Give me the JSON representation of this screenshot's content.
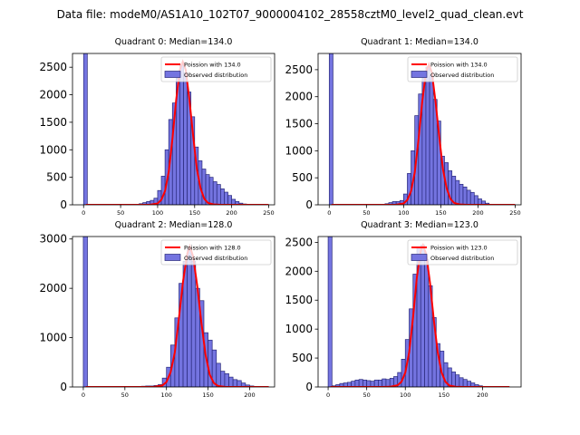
{
  "figure": {
    "suptitle": "Data file: modeM0/AS1A10_102T07_9000004102_28558cztM0_level2_quad_clean.evt"
  },
  "colors": {
    "bar_fill": "#7474e0",
    "bar_edge": "#28287a",
    "line": "#ff0000",
    "axis": "#000000"
  },
  "chart_data": [
    {
      "type": "bar",
      "title": "Quadrant 0: Median=134.0",
      "median": 134.0,
      "xlim": [
        -15,
        258
      ],
      "ylim": [
        0,
        2750
      ],
      "xticks": [
        0,
        50,
        100,
        150,
        200,
        250
      ],
      "yticks": [
        0,
        500,
        1000,
        1500,
        2000,
        2500
      ],
      "bin_width": 5,
      "bars": [
        [
          0,
          2750
        ],
        [
          65,
          10
        ],
        [
          70,
          10
        ],
        [
          75,
          20
        ],
        [
          80,
          40
        ],
        [
          85,
          60
        ],
        [
          90,
          80
        ],
        [
          95,
          120
        ],
        [
          100,
          260
        ],
        [
          105,
          520
        ],
        [
          110,
          1000
        ],
        [
          115,
          1550
        ],
        [
          120,
          1850
        ],
        [
          125,
          2300
        ],
        [
          130,
          2550
        ],
        [
          135,
          2400
        ],
        [
          140,
          2050
        ],
        [
          145,
          1600
        ],
        [
          150,
          1050
        ],
        [
          155,
          800
        ],
        [
          160,
          650
        ],
        [
          165,
          550
        ],
        [
          170,
          500
        ],
        [
          175,
          420
        ],
        [
          180,
          370
        ],
        [
          185,
          290
        ],
        [
          190,
          230
        ],
        [
          195,
          170
        ],
        [
          200,
          100
        ],
        [
          205,
          60
        ],
        [
          210,
          30
        ],
        [
          215,
          15
        ],
        [
          220,
          5
        ]
      ],
      "poisson_curve": {
        "lambda": 134.0,
        "peak": 2600,
        "points": [
          [
            3,
            0
          ],
          [
            80,
            0
          ],
          [
            90,
            2
          ],
          [
            100,
            25
          ],
          [
            105,
            90
          ],
          [
            110,
            250
          ],
          [
            115,
            600
          ],
          [
            120,
            1200
          ],
          [
            125,
            1900
          ],
          [
            130,
            2450
          ],
          [
            134,
            2600
          ],
          [
            138,
            2450
          ],
          [
            143,
            1900
          ],
          [
            148,
            1250
          ],
          [
            153,
            650
          ],
          [
            158,
            300
          ],
          [
            163,
            110
          ],
          [
            168,
            35
          ],
          [
            175,
            8
          ],
          [
            185,
            0
          ],
          [
            250,
            0
          ]
        ]
      },
      "legend": {
        "location": "upper right",
        "entries": [
          "Poission with 134.0",
          "Observed distribution"
        ]
      }
    },
    {
      "type": "bar",
      "title": "Quadrant 1: Median=134.0",
      "median": 134.0,
      "xlim": [
        -15,
        258
      ],
      "ylim": [
        0,
        2800
      ],
      "xticks": [
        0,
        50,
        100,
        150,
        200,
        250
      ],
      "yticks": [
        0,
        500,
        1000,
        1500,
        2000,
        2500
      ],
      "bin_width": 5,
      "bars": [
        [
          0,
          2800
        ],
        [
          65,
          10
        ],
        [
          70,
          10
        ],
        [
          75,
          20
        ],
        [
          80,
          40
        ],
        [
          85,
          60
        ],
        [
          90,
          60
        ],
        [
          95,
          80
        ],
        [
          100,
          200
        ],
        [
          105,
          580
        ],
        [
          110,
          1000
        ],
        [
          115,
          1650
        ],
        [
          120,
          2050
        ],
        [
          125,
          2350
        ],
        [
          130,
          2550
        ],
        [
          135,
          2400
        ],
        [
          140,
          1950
        ],
        [
          145,
          1550
        ],
        [
          150,
          900
        ],
        [
          155,
          780
        ],
        [
          160,
          630
        ],
        [
          165,
          530
        ],
        [
          170,
          450
        ],
        [
          175,
          380
        ],
        [
          180,
          330
        ],
        [
          185,
          270
        ],
        [
          190,
          230
        ],
        [
          195,
          170
        ],
        [
          200,
          110
        ],
        [
          205,
          70
        ],
        [
          210,
          30
        ],
        [
          215,
          10
        ],
        [
          220,
          5
        ]
      ],
      "poisson_curve": {
        "lambda": 134.0,
        "peak": 2600,
        "points": [
          [
            3,
            0
          ],
          [
            80,
            0
          ],
          [
            90,
            2
          ],
          [
            100,
            25
          ],
          [
            105,
            90
          ],
          [
            110,
            250
          ],
          [
            115,
            600
          ],
          [
            120,
            1200
          ],
          [
            125,
            1900
          ],
          [
            130,
            2450
          ],
          [
            134,
            2600
          ],
          [
            138,
            2450
          ],
          [
            143,
            1900
          ],
          [
            148,
            1250
          ],
          [
            153,
            650
          ],
          [
            158,
            300
          ],
          [
            163,
            110
          ],
          [
            168,
            35
          ],
          [
            175,
            8
          ],
          [
            185,
            0
          ],
          [
            250,
            0
          ]
        ]
      },
      "legend": {
        "location": "upper right",
        "entries": [
          "Poission with 134.0",
          "Observed distribution"
        ]
      }
    },
    {
      "type": "bar",
      "title": "Quadrant 2: Median=128.0",
      "median": 128.0,
      "xlim": [
        -13,
        230
      ],
      "ylim": [
        0,
        3050
      ],
      "xticks": [
        0,
        50,
        100,
        150,
        200
      ],
      "yticks": [
        0,
        1000,
        2000,
        3000
      ],
      "bin_width": 5,
      "bars": [
        [
          0,
          3050
        ],
        [
          70,
          15
        ],
        [
          75,
          20
        ],
        [
          80,
          20
        ],
        [
          85,
          30
        ],
        [
          90,
          50
        ],
        [
          95,
          180
        ],
        [
          100,
          400
        ],
        [
          105,
          850
        ],
        [
          110,
          1400
        ],
        [
          115,
          2100
        ],
        [
          120,
          2550
        ],
        [
          125,
          2800
        ],
        [
          130,
          2550
        ],
        [
          135,
          2000
        ],
        [
          140,
          1750
        ],
        [
          145,
          1100
        ],
        [
          150,
          950
        ],
        [
          155,
          750
        ],
        [
          160,
          480
        ],
        [
          165,
          320
        ],
        [
          170,
          270
        ],
        [
          175,
          200
        ],
        [
          180,
          150
        ],
        [
          185,
          130
        ],
        [
          190,
          80
        ],
        [
          195,
          40
        ],
        [
          200,
          20
        ],
        [
          205,
          10
        ]
      ],
      "poisson_curve": {
        "lambda": 128.0,
        "peak": 2850,
        "points": [
          [
            3,
            0
          ],
          [
            75,
            0
          ],
          [
            85,
            3
          ],
          [
            95,
            30
          ],
          [
            100,
            100
          ],
          [
            105,
            300
          ],
          [
            110,
            700
          ],
          [
            115,
            1400
          ],
          [
            120,
            2150
          ],
          [
            125,
            2700
          ],
          [
            128,
            2850
          ],
          [
            132,
            2650
          ],
          [
            137,
            2050
          ],
          [
            142,
            1300
          ],
          [
            147,
            650
          ],
          [
            152,
            250
          ],
          [
            157,
            80
          ],
          [
            162,
            20
          ],
          [
            170,
            3
          ],
          [
            180,
            0
          ],
          [
            223,
            0
          ]
        ]
      },
      "legend": {
        "location": "upper right",
        "entries": [
          "Poission with 128.0",
          "Observed distribution"
        ]
      }
    },
    {
      "type": "bar",
      "title": "Quadrant 3: Median=123.0",
      "median": 123.0,
      "xlim": [
        -13,
        250
      ],
      "ylim": [
        0,
        2600
      ],
      "xticks": [
        0,
        50,
        100,
        150,
        200
      ],
      "yticks": [
        0,
        500,
        1000,
        1500,
        2000,
        2500
      ],
      "bin_width": 5,
      "bars": [
        [
          0,
          2600
        ],
        [
          5,
          20
        ],
        [
          10,
          40
        ],
        [
          15,
          60
        ],
        [
          20,
          70
        ],
        [
          25,
          80
        ],
        [
          30,
          100
        ],
        [
          35,
          120
        ],
        [
          40,
          130
        ],
        [
          45,
          120
        ],
        [
          50,
          110
        ],
        [
          55,
          100
        ],
        [
          60,
          120
        ],
        [
          65,
          120
        ],
        [
          70,
          140
        ],
        [
          75,
          130
        ],
        [
          80,
          150
        ],
        [
          85,
          180
        ],
        [
          90,
          250
        ],
        [
          95,
          480
        ],
        [
          100,
          820
        ],
        [
          105,
          1350
        ],
        [
          110,
          1950
        ],
        [
          115,
          2400
        ],
        [
          120,
          2450
        ],
        [
          125,
          2200
        ],
        [
          130,
          1750
        ],
        [
          135,
          1200
        ],
        [
          140,
          750
        ],
        [
          145,
          620
        ],
        [
          150,
          420
        ],
        [
          155,
          330
        ],
        [
          160,
          260
        ],
        [
          165,
          210
        ],
        [
          170,
          160
        ],
        [
          175,
          130
        ],
        [
          180,
          100
        ],
        [
          185,
          70
        ],
        [
          190,
          40
        ],
        [
          195,
          20
        ],
        [
          200,
          10
        ]
      ],
      "poisson_curve": {
        "lambda": 123.0,
        "peak": 2450,
        "points": [
          [
            3,
            0
          ],
          [
            70,
            0
          ],
          [
            80,
            3
          ],
          [
            90,
            30
          ],
          [
            95,
            90
          ],
          [
            100,
            250
          ],
          [
            105,
            600
          ],
          [
            110,
            1200
          ],
          [
            115,
            1900
          ],
          [
            120,
            2350
          ],
          [
            123,
            2450
          ],
          [
            127,
            2300
          ],
          [
            132,
            1800
          ],
          [
            137,
            1150
          ],
          [
            142,
            600
          ],
          [
            147,
            250
          ],
          [
            152,
            90
          ],
          [
            157,
            25
          ],
          [
            165,
            4
          ],
          [
            175,
            0
          ],
          [
            235,
            0
          ]
        ]
      },
      "legend": {
        "location": "upper right",
        "entries": [
          "Poission with 123.0",
          "Observed distribution"
        ]
      }
    }
  ]
}
